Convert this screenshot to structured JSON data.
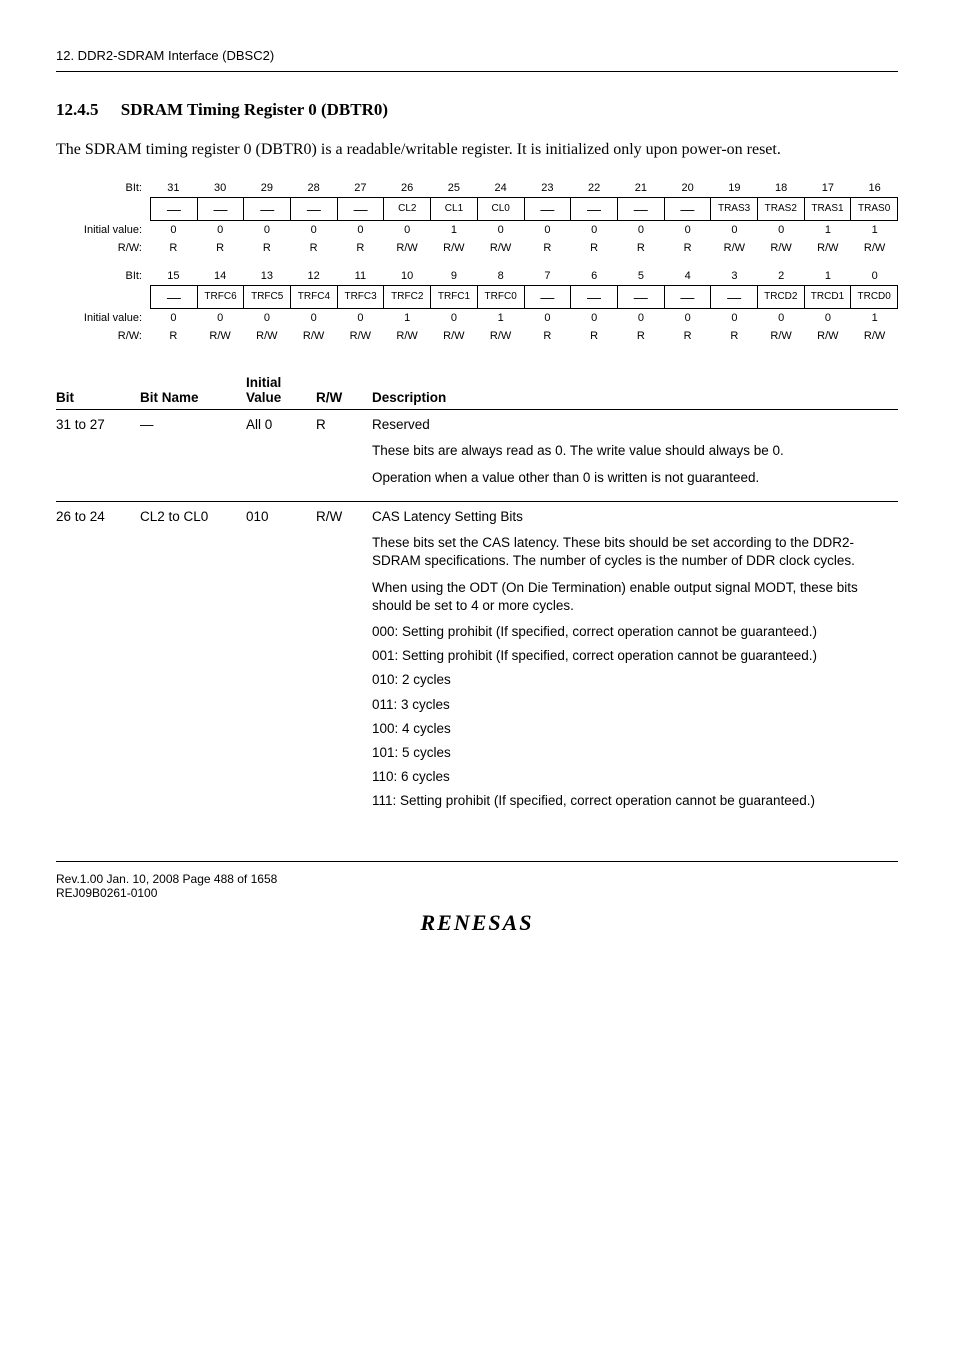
{
  "header_context": "12.   DDR2-SDRAM Interface (DBSC2)",
  "heading_number": "12.4.5",
  "heading_title": "SDRAM Timing Register 0 (DBTR0)",
  "intro_para": "The SDRAM timing register 0 (DBTR0) is a readable/writable register. It is initialized only upon power-on reset.",
  "reg": {
    "labels": {
      "bit": "BIt:",
      "initial": "Initial value:",
      "rw": "R/W:"
    },
    "upper": {
      "bitnums": [
        "31",
        "30",
        "29",
        "28",
        "27",
        "26",
        "25",
        "24",
        "23",
        "22",
        "21",
        "20",
        "19",
        "18",
        "17",
        "16"
      ],
      "names": [
        "—",
        "—",
        "—",
        "—",
        "—",
        "CL2",
        "CL1",
        "CL0",
        "—",
        "—",
        "—",
        "—",
        "TRAS3",
        "TRAS2",
        "TRAS1",
        "TRAS0"
      ],
      "initial": [
        "0",
        "0",
        "0",
        "0",
        "0",
        "0",
        "1",
        "0",
        "0",
        "0",
        "0",
        "0",
        "0",
        "0",
        "1",
        "1"
      ],
      "rw": [
        "R",
        "R",
        "R",
        "R",
        "R",
        "R/W",
        "R/W",
        "R/W",
        "R",
        "R",
        "R",
        "R",
        "R/W",
        "R/W",
        "R/W",
        "R/W"
      ]
    },
    "lower": {
      "bitnums": [
        "15",
        "14",
        "13",
        "12",
        "11",
        "10",
        "9",
        "8",
        "7",
        "6",
        "5",
        "4",
        "3",
        "2",
        "1",
        "0"
      ],
      "names": [
        "—",
        "TRFC6",
        "TRFC5",
        "TRFC4",
        "TRFC3",
        "TRFC2",
        "TRFC1",
        "TRFC0",
        "—",
        "—",
        "—",
        "—",
        "—",
        "TRCD2",
        "TRCD1",
        "TRCD0"
      ],
      "initial": [
        "0",
        "0",
        "0",
        "0",
        "0",
        "1",
        "0",
        "1",
        "0",
        "0",
        "0",
        "0",
        "0",
        "0",
        "0",
        "1"
      ],
      "rw": [
        "R",
        "R/W",
        "R/W",
        "R/W",
        "R/W",
        "R/W",
        "R/W",
        "R/W",
        "R",
        "R",
        "R",
        "R",
        "R",
        "R/W",
        "R/W",
        "R/W"
      ]
    }
  },
  "table": {
    "headers": {
      "bit": "Bit",
      "name": "Bit Name",
      "initial": "Initial Value",
      "rw": "R/W",
      "desc": "Description"
    },
    "rows": [
      {
        "bit": "31 to 27",
        "name": "—",
        "initial": "All 0",
        "rw": "R",
        "desc": {
          "title": "Reserved",
          "p1": "These bits are always read as 0. The write value should always be 0.",
          "p2": "Operation when a value other than 0 is written is not guaranteed."
        }
      },
      {
        "bit": "26 to 24",
        "name": "CL2 to CL0",
        "initial": "010",
        "rw": "R/W",
        "desc": {
          "title": "CAS Latency Setting Bits",
          "p1": "These bits set the CAS latency. These bits should be set according to the DDR2-SDRAM specifications. The number of cycles is the number of DDR clock cycles.",
          "p2": "When using the ODT (On Die Termination) enable output signal MODT, these bits should be set to 4 or more cycles.",
          "b000": "000: Setting prohibit (If specified, correct operation cannot be guaranteed.)",
          "b001": "001: Setting prohibit (If specified, correct operation cannot be guaranteed.)",
          "b010": "010: 2 cycles",
          "b011": "011: 3 cycles",
          "b100": "100: 4 cycles",
          "b101": "101: 5 cycles",
          "b110": "110: 6 cycles",
          "b111": "111: Setting prohibit (If specified, correct operation cannot be guaranteed.)"
        }
      }
    ]
  },
  "footer": {
    "rev": "Rev.1.00  Jan. 10, 2008  Page 488 of 1658",
    "code": "REJ09B0261-0100",
    "logo": "RENESAS"
  }
}
